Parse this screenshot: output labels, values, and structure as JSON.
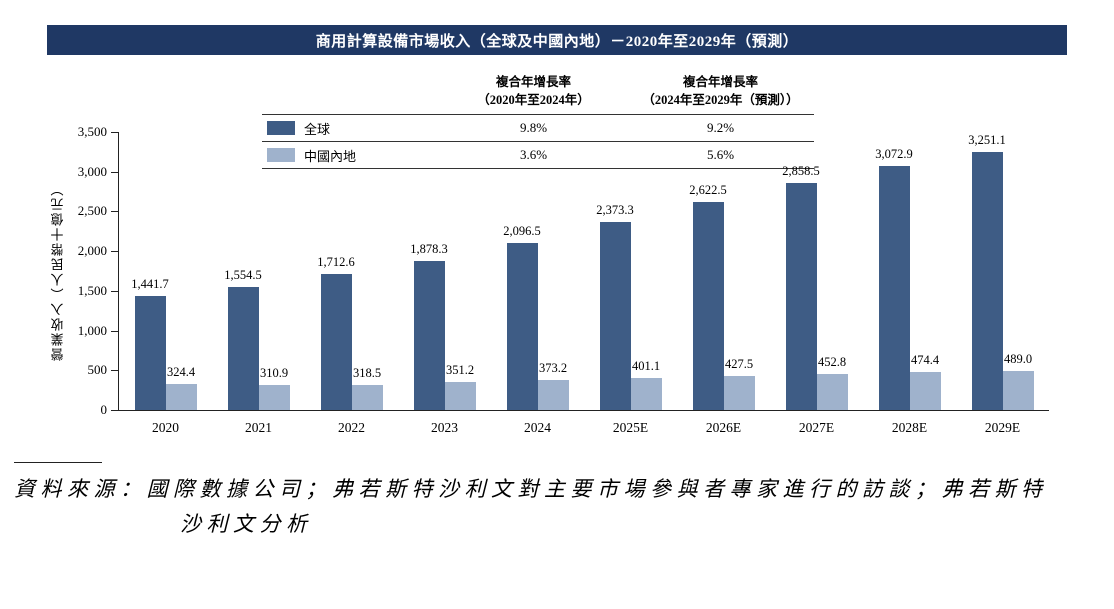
{
  "title": "商用計算設備市場收入（全球及中國內地）－2020年至2029年（預測）",
  "legend": {
    "col_headers": [
      "複合年增長率\n（2020年至2024年）",
      "複合年增長率\n（2024年至2029年（預測））"
    ],
    "rows": [
      {
        "label": "全球",
        "cagr_2020_2024": "9.8%",
        "cagr_2024_2029": "9.2%",
        "color": "#3E5C85"
      },
      {
        "label": "中國內地",
        "cagr_2020_2024": "3.6%",
        "cagr_2024_2029": "5.6%",
        "color": "#9FB2CC"
      }
    ]
  },
  "chart_data": {
    "type": "bar",
    "categories": [
      "2020",
      "2021",
      "2022",
      "2023",
      "2024",
      "2025E",
      "2026E",
      "2027E",
      "2028E",
      "2029E"
    ],
    "series": [
      {
        "name": "全球",
        "color": "#3E5C85",
        "values": [
          1441.7,
          1554.5,
          1712.6,
          1878.3,
          2096.5,
          2373.3,
          2622.5,
          2858.5,
          3072.9,
          3251.1
        ]
      },
      {
        "name": "中國內地",
        "color": "#9FB2CC",
        "values": [
          324.4,
          310.9,
          318.5,
          351.2,
          373.2,
          401.1,
          427.5,
          452.8,
          474.4,
          489.0
        ]
      }
    ],
    "title": "商用計算設備市場收入（全球及中國內地）－2020年至2029年（預測）",
    "xlabel": "",
    "ylabel": "營業收入（人民幣十億元）",
    "ylim": [
      0,
      3500
    ],
    "yticks": [
      0,
      500,
      1000,
      1500,
      2000,
      2500,
      3000,
      3500
    ],
    "grid": false,
    "legend_position": "top"
  },
  "source_note": {
    "line1": "資料來源：國際數據公司；弗若斯特沙利文對主要市場參與者專家進行的訪談；弗若斯特",
    "line2": "沙利文分析"
  },
  "colors": {
    "title_bar_bg": "#1F3864",
    "title_bar_text": "#FFFFFF",
    "global_bar": "#3E5C85",
    "china_bar": "#9FB2CC",
    "axis": "#222222"
  }
}
